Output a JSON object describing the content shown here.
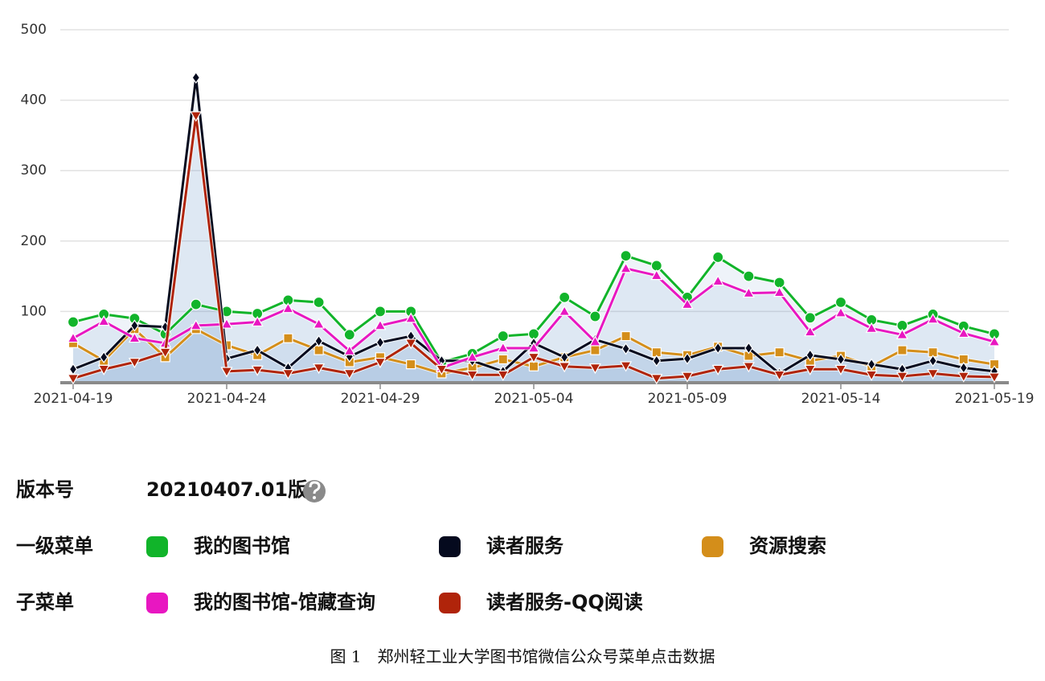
{
  "chart_data": {
    "type": "line",
    "categories": [
      "2021-04-19",
      null,
      null,
      null,
      null,
      "2021-04-24",
      null,
      null,
      null,
      null,
      "2021-04-29",
      null,
      null,
      null,
      null,
      "2021-05-04",
      null,
      null,
      null,
      null,
      "2021-05-09",
      null,
      null,
      null,
      null,
      "2021-05-14",
      null,
      null,
      null,
      null,
      "2021-05-19"
    ],
    "ylim": [
      0,
      500
    ],
    "yticks": [
      100,
      200,
      300,
      400,
      500
    ],
    "grid": true,
    "area_color": "#5b8cc4",
    "series": [
      {
        "name": "我的图书馆",
        "color": "#11b42a",
        "marker": "circle",
        "values": [
          85,
          96,
          90,
          68,
          110,
          100,
          97,
          116,
          113,
          67,
          100,
          100,
          28,
          40,
          65,
          68,
          120,
          93,
          179,
          165,
          120,
          177,
          150,
          141,
          91,
          113,
          88,
          80,
          96,
          79,
          68
        ]
      },
      {
        "name": "读者服务",
        "color": "#050a1e",
        "marker": "diamond",
        "values": [
          18,
          35,
          80,
          78,
          432,
          33,
          45,
          20,
          58,
          36,
          56,
          65,
          30,
          30,
          15,
          55,
          35,
          60,
          47,
          30,
          33,
          48,
          48,
          12,
          38,
          32,
          25,
          18,
          30,
          20,
          15
        ]
      },
      {
        "name": "资源搜索",
        "color": "#d48e1a",
        "marker": "square",
        "values": [
          55,
          30,
          75,
          35,
          75,
          52,
          38,
          62,
          45,
          28,
          35,
          25,
          12,
          20,
          32,
          22,
          35,
          45,
          65,
          42,
          38,
          50,
          37,
          42,
          30,
          37,
          22,
          45,
          42,
          32,
          25
        ]
      },
      {
        "name": "我的图书馆-馆藏查询",
        "color": "#e817c1",
        "marker": "triangle-up",
        "values": [
          62,
          86,
          62,
          55,
          80,
          82,
          85,
          104,
          82,
          44,
          80,
          90,
          20,
          35,
          48,
          48,
          100,
          57,
          161,
          151,
          110,
          143,
          126,
          127,
          71,
          98,
          76,
          67,
          89,
          69,
          57
        ]
      },
      {
        "name": "读者服务-QQ阅读",
        "color": "#b0240a",
        "marker": "triangle-down",
        "values": [
          5,
          18,
          28,
          42,
          378,
          15,
          17,
          12,
          20,
          12,
          28,
          55,
          18,
          10,
          10,
          35,
          22,
          20,
          23,
          5,
          8,
          18,
          22,
          10,
          18,
          18,
          10,
          8,
          12,
          8,
          7
        ]
      }
    ]
  },
  "legend": {
    "version_label": "版本号",
    "version": "20210407.01版",
    "level1_label": "一级菜单",
    "level2_label": "子菜单"
  },
  "caption": "图 1　郑州轻工业大学图书馆微信公众号菜单点击数据"
}
